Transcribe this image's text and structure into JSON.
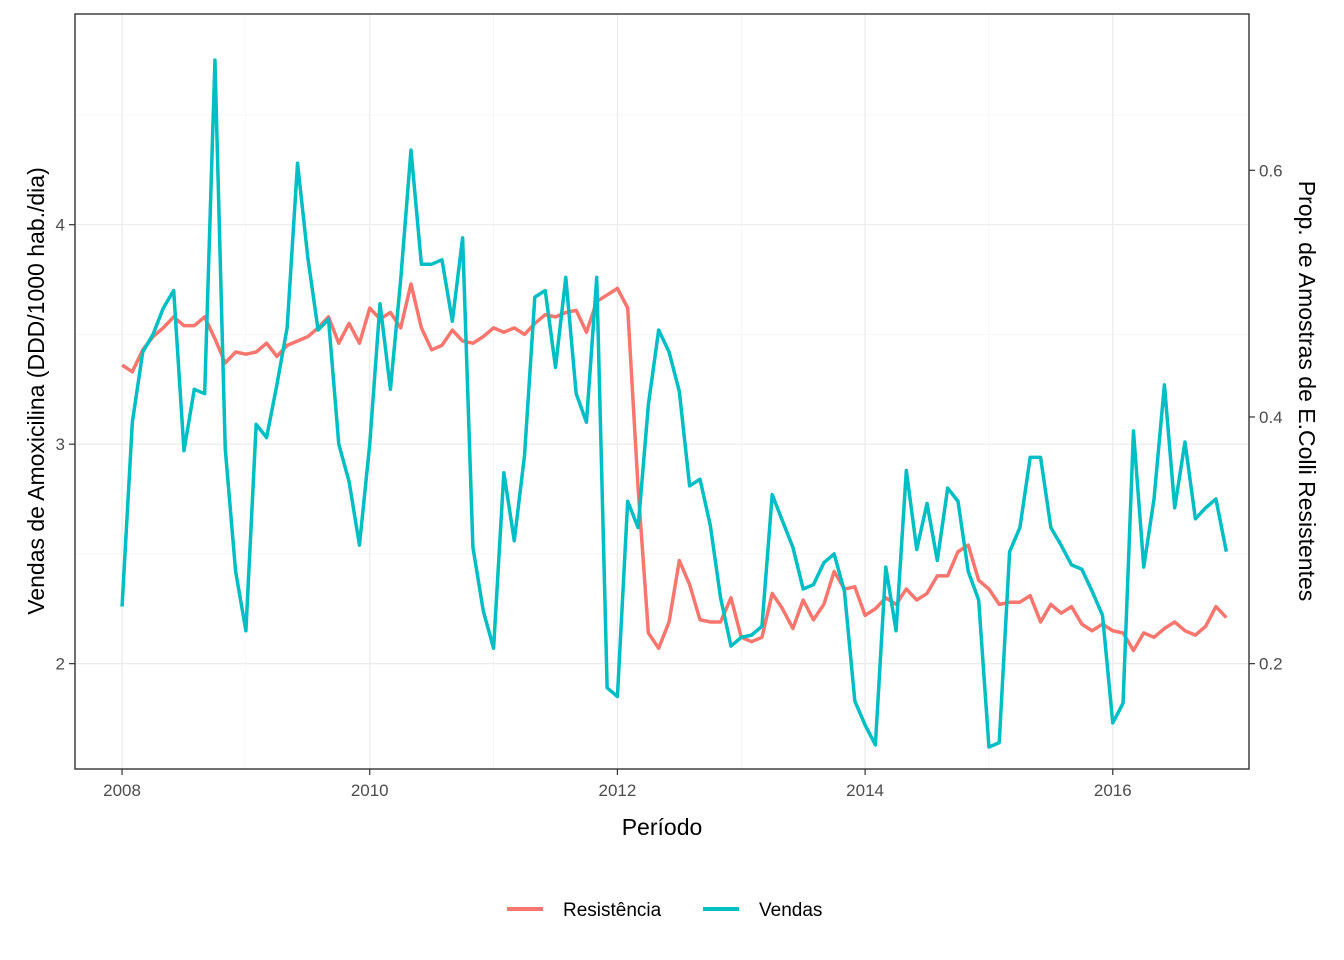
{
  "chart_data": {
    "type": "line",
    "xlabel": "Período",
    "ylabel_left": "Vendas de Amoxicilina (DDD/1000 hab./dia)",
    "ylabel_right": "Prop. de Amostras de E.Colli Resistentes",
    "x_ticks": [
      2008,
      2010,
      2012,
      2014,
      2016
    ],
    "xlim": [
      2007.62,
      2017.1
    ],
    "y_left_ticks": [
      2,
      3,
      4
    ],
    "y_left_lim": [
      1.52,
      4.96
    ],
    "y_right_ticks": [
      0.2,
      0.4,
      0.6
    ],
    "y_right_tick_labels": [
      "0.2",
      "0.4",
      "0.6"
    ],
    "legend_position": "bottom",
    "grid": true,
    "series": [
      {
        "name": "Resistência",
        "color": "#F8766D",
        "axis": "left",
        "x": [
          2008.0,
          2008.083,
          2008.167,
          2008.25,
          2008.333,
          2008.417,
          2008.5,
          2008.583,
          2008.667,
          2008.75,
          2008.833,
          2008.917,
          2009.0,
          2009.083,
          2009.167,
          2009.25,
          2009.333,
          2009.417,
          2009.5,
          2009.583,
          2009.667,
          2009.75,
          2009.833,
          2009.917,
          2010.0,
          2010.083,
          2010.167,
          2010.25,
          2010.333,
          2010.417,
          2010.5,
          2010.583,
          2010.667,
          2010.75,
          2010.833,
          2010.917,
          2011.0,
          2011.083,
          2011.167,
          2011.25,
          2011.333,
          2011.417,
          2011.5,
          2011.583,
          2011.667,
          2011.75,
          2011.833,
          2011.917,
          2012.0,
          2012.083,
          2012.167,
          2012.25,
          2012.333,
          2012.417,
          2012.5,
          2012.583,
          2012.667,
          2012.75,
          2012.833,
          2012.917,
          2013.0,
          2013.083,
          2013.167,
          2013.25,
          2013.333,
          2013.417,
          2013.5,
          2013.583,
          2013.667,
          2013.75,
          2013.833,
          2013.917,
          2014.0,
          2014.083,
          2014.167,
          2014.25,
          2014.333,
          2014.417,
          2014.5,
          2014.583,
          2014.667,
          2014.75,
          2014.833,
          2014.917,
          2015.0,
          2015.083,
          2015.167,
          2015.25,
          2015.333,
          2015.417,
          2015.5,
          2015.583,
          2015.667,
          2015.75,
          2015.833,
          2015.917,
          2016.0,
          2016.083,
          2016.167,
          2016.25,
          2016.333,
          2016.417,
          2016.5,
          2016.583,
          2016.667,
          2016.75,
          2016.833,
          2016.917
        ],
        "values": [
          3.36,
          3.33,
          3.43,
          3.49,
          3.53,
          3.58,
          3.54,
          3.54,
          3.58,
          3.48,
          3.37,
          3.42,
          3.41,
          3.42,
          3.46,
          3.4,
          3.45,
          3.47,
          3.49,
          3.53,
          3.58,
          3.46,
          3.55,
          3.46,
          3.62,
          3.57,
          3.6,
          3.53,
          3.73,
          3.53,
          3.43,
          3.45,
          3.52,
          3.47,
          3.46,
          3.49,
          3.53,
          3.51,
          3.53,
          3.5,
          3.55,
          3.59,
          3.58,
          3.6,
          3.61,
          3.51,
          3.65,
          3.68,
          3.71,
          3.62,
          2.8,
          2.14,
          2.07,
          2.19,
          2.47,
          2.36,
          2.2,
          2.19,
          2.19,
          2.3,
          2.12,
          2.1,
          2.12,
          2.32,
          2.25,
          2.16,
          2.29,
          2.2,
          2.27,
          2.42,
          2.34,
          2.35,
          2.22,
          2.25,
          2.3,
          2.27,
          2.34,
          2.29,
          2.32,
          2.4,
          2.4,
          2.51,
          2.54,
          2.38,
          2.34,
          2.27,
          2.28,
          2.28,
          2.31,
          2.19,
          2.27,
          2.23,
          2.26,
          2.18,
          2.15,
          2.18,
          2.15,
          2.14,
          2.06,
          2.14,
          2.12,
          2.16,
          2.19,
          2.15,
          2.13,
          2.17,
          2.26,
          2.21
        ]
      },
      {
        "name": "Vendas",
        "color": "#00BFC4",
        "axis": "left",
        "x": [
          2008.0,
          2008.083,
          2008.167,
          2008.25,
          2008.333,
          2008.417,
          2008.5,
          2008.583,
          2008.667,
          2008.75,
          2008.833,
          2008.917,
          2009.0,
          2009.083,
          2009.167,
          2009.25,
          2009.333,
          2009.417,
          2009.5,
          2009.583,
          2009.667,
          2009.75,
          2009.833,
          2009.917,
          2010.0,
          2010.083,
          2010.167,
          2010.25,
          2010.333,
          2010.417,
          2010.5,
          2010.583,
          2010.667,
          2010.75,
          2010.833,
          2010.917,
          2011.0,
          2011.083,
          2011.167,
          2011.25,
          2011.333,
          2011.417,
          2011.5,
          2011.583,
          2011.667,
          2011.75,
          2011.833,
          2011.917,
          2012.0,
          2012.083,
          2012.167,
          2012.25,
          2012.333,
          2012.417,
          2012.5,
          2012.583,
          2012.667,
          2012.75,
          2012.833,
          2012.917,
          2013.0,
          2013.083,
          2013.167,
          2013.25,
          2013.333,
          2013.417,
          2013.5,
          2013.583,
          2013.667,
          2013.75,
          2013.833,
          2013.917,
          2014.0,
          2014.083,
          2014.167,
          2014.25,
          2014.333,
          2014.417,
          2014.5,
          2014.583,
          2014.667,
          2014.75,
          2014.833,
          2014.917,
          2015.0,
          2015.083,
          2015.167,
          2015.25,
          2015.333,
          2015.417,
          2015.5,
          2015.583,
          2015.667,
          2015.75,
          2015.833,
          2015.917,
          2016.0,
          2016.083,
          2016.167,
          2016.25,
          2016.333,
          2016.417,
          2016.5,
          2016.583,
          2016.667,
          2016.75,
          2016.833,
          2016.917
        ],
        "values": [
          2.26,
          3.1,
          3.42,
          3.5,
          3.62,
          3.7,
          2.97,
          3.25,
          3.23,
          4.75,
          2.98,
          2.42,
          2.15,
          3.09,
          3.03,
          3.27,
          3.53,
          4.28,
          3.85,
          3.52,
          3.57,
          3.0,
          2.83,
          2.54,
          3.0,
          3.64,
          3.25,
          3.75,
          4.34,
          3.82,
          3.82,
          3.84,
          3.56,
          3.94,
          2.53,
          2.24,
          2.07,
          2.87,
          2.56,
          2.95,
          3.67,
          3.7,
          3.35,
          3.76,
          3.23,
          3.1,
          3.76,
          1.89,
          1.85,
          2.74,
          2.62,
          3.18,
          3.52,
          3.42,
          3.24,
          2.81,
          2.84,
          2.63,
          2.3,
          2.08,
          2.12,
          2.13,
          2.17,
          2.77,
          2.65,
          2.53,
          2.34,
          2.36,
          2.46,
          2.5,
          2.33,
          1.83,
          1.72,
          1.63,
          2.44,
          2.15,
          2.88,
          2.52,
          2.73,
          2.47,
          2.8,
          2.74,
          2.42,
          2.29,
          1.62,
          1.64,
          2.51,
          2.62,
          2.94,
          2.94,
          2.62,
          2.54,
          2.45,
          2.43,
          2.33,
          2.22,
          1.73,
          1.82,
          3.06,
          2.44,
          2.75,
          3.27,
          2.71,
          3.01,
          2.66,
          2.71,
          2.75,
          2.51
        ]
      }
    ]
  }
}
